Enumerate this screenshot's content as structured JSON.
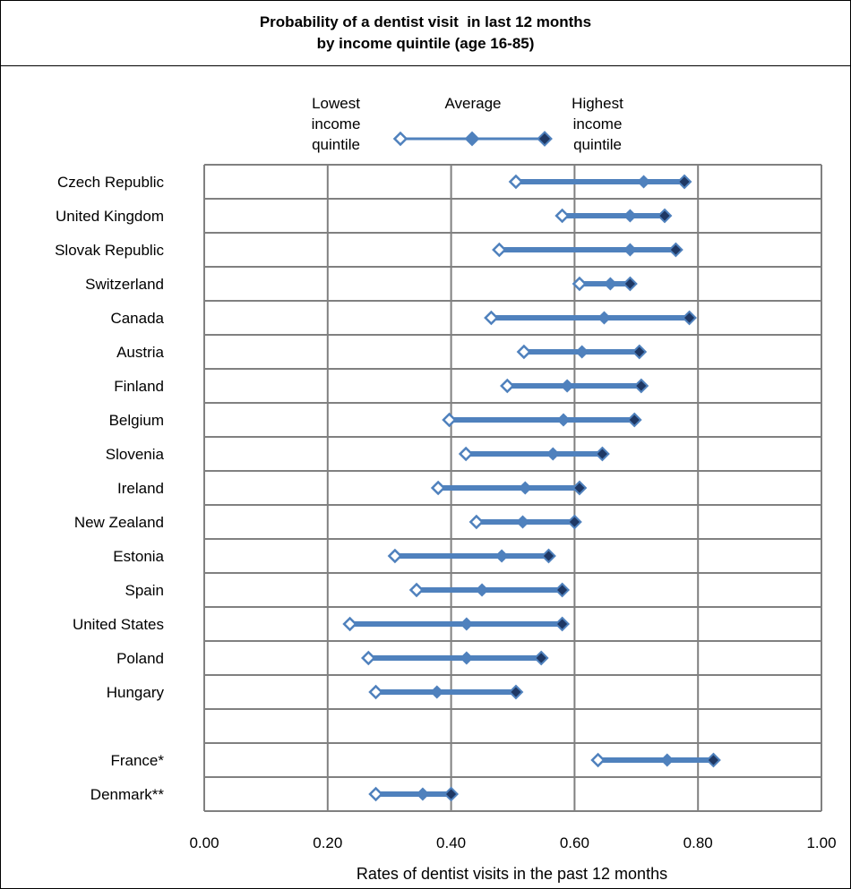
{
  "chart_data": {
    "type": "dot-range",
    "title": "Probability of a dentist visit  in last 12 months",
    "subtitle": "by income quintile (age 16-85)",
    "xlabel": "Rates of dentist visits in the past 12 months",
    "xlim": [
      0,
      1
    ],
    "x_ticks": [
      "0.00",
      "0.20",
      "0.40",
      "0.60",
      "0.80",
      "1.00"
    ],
    "x_tick_values": [
      0,
      0.2,
      0.4,
      0.6,
      0.8,
      1.0
    ],
    "grid": true,
    "legend": {
      "position": "top",
      "low": [
        "Lowest",
        "income",
        "quintile"
      ],
      "avg": [
        "Average"
      ],
      "high": [
        "Highest",
        "income",
        "quintile"
      ]
    },
    "colors": {
      "line": "#4f81bd",
      "low_fill": "#ffffff",
      "avg_fill": "#4f81bd",
      "high_fill": "#1f3864",
      "grid": "#808080"
    },
    "categories": [
      "Czech Republic",
      "United Kingdom",
      "Slovak Republic",
      "Switzerland",
      "Canada",
      "Austria",
      "Finland",
      "Belgium",
      "Slovenia",
      "Ireland",
      "New Zealand",
      "Estonia",
      "Spain",
      "United States",
      "Poland",
      "Hungary",
      "",
      "France*",
      "Denmark**"
    ],
    "series": [
      {
        "name": "Lowest income quintile",
        "values": [
          0.505,
          0.58,
          0.478,
          0.608,
          0.465,
          0.518,
          0.491,
          0.397,
          0.424,
          0.379,
          0.441,
          0.309,
          0.344,
          0.236,
          0.266,
          0.278,
          null,
          0.638,
          0.278
        ]
      },
      {
        "name": "Average",
        "values": [
          0.712,
          0.69,
          0.69,
          0.658,
          0.648,
          0.612,
          0.588,
          0.582,
          0.565,
          0.52,
          0.516,
          0.482,
          0.45,
          0.425,
          0.425,
          0.377,
          null,
          0.75,
          0.354
        ]
      },
      {
        "name": "Highest income quintile",
        "values": [
          0.778,
          0.746,
          0.764,
          0.69,
          0.786,
          0.705,
          0.708,
          0.697,
          0.645,
          0.608,
          0.6,
          0.558,
          0.58,
          0.58,
          0.546,
          0.505,
          null,
          0.825,
          0.4
        ]
      }
    ]
  }
}
